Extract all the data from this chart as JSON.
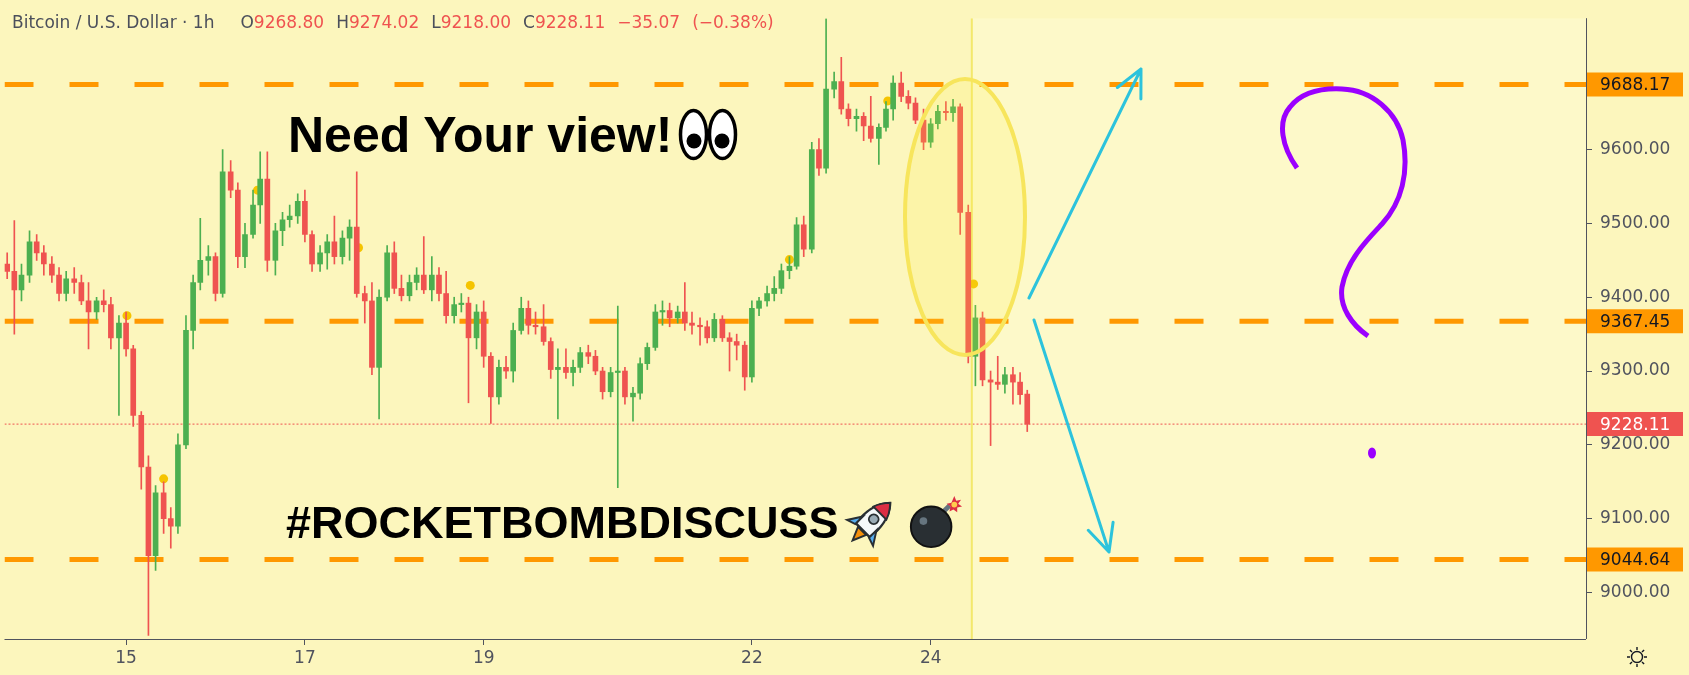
{
  "chart_data": {
    "type": "candlestick",
    "title": "Bitcoin / U.S. Dollar · 1h",
    "subtitle": "O9268.80 H9274.02 L9218.00 C9228.11 −35.07 (−0.38%)",
    "annotations": [
      "Need Your view!",
      "#ROCKETBOMBDISCUSS"
    ],
    "x": [
      13.67,
      13.75,
      13.83,
      13.92,
      14,
      14.08,
      14.17,
      14.25,
      14.33,
      14.42,
      14.5,
      14.58,
      14.67,
      14.75,
      14.83,
      14.92,
      15,
      15.08,
      15.17,
      15.25,
      15.33,
      15.42,
      15.5,
      15.58,
      15.67,
      15.75,
      15.83,
      15.92,
      16,
      16.08,
      16.17,
      16.25,
      16.33,
      16.42,
      16.5,
      16.58,
      16.67,
      16.75,
      16.83,
      16.92,
      17,
      17.08,
      17.17,
      17.25,
      17.33,
      17.42,
      17.5,
      17.58,
      17.67,
      17.75,
      17.83,
      17.92,
      18,
      18.08,
      18.17,
      18.25,
      18.33,
      18.42,
      18.5,
      18.58,
      18.67,
      18.75,
      18.83,
      18.92,
      19,
      19.08,
      19.17,
      19.25,
      19.33,
      19.42,
      19.5,
      19.58,
      19.67,
      19.75,
      19.83,
      19.92,
      20,
      20.08,
      20.17,
      20.25,
      20.33,
      20.42,
      20.5,
      20.58,
      20.67,
      20.75,
      20.83,
      20.92,
      21,
      21.08,
      21.17,
      21.25,
      21.33,
      21.42,
      21.5,
      21.58,
      21.67,
      21.75,
      21.83,
      21.92,
      22,
      22.08,
      22.17,
      22.25,
      22.33,
      22.42,
      22.5,
      22.58,
      22.67,
      22.75,
      22.83,
      22.92,
      23,
      23.08,
      23.17,
      23.25,
      23.33,
      23.42,
      23.5,
      23.58,
      23.67,
      23.75,
      23.83,
      23.92,
      24,
      24.08,
      24.17,
      24.25,
      24.33,
      24.42,
      24.5,
      24.58,
      24.67,
      24.75,
      24.83,
      24.92,
      25,
      25.08
    ],
    "ohlc": [
      [
        9445,
        9460,
        9425,
        9435
      ],
      [
        9435,
        9504,
        9350,
        9410
      ],
      [
        9410,
        9445,
        9395,
        9430
      ],
      [
        9430,
        9490,
        9420,
        9475
      ],
      [
        9475,
        9485,
        9450,
        9460
      ],
      [
        9460,
        9470,
        9430,
        9445
      ],
      [
        9445,
        9455,
        9420,
        9430
      ],
      [
        9430,
        9440,
        9395,
        9405
      ],
      [
        9405,
        9435,
        9395,
        9425
      ],
      [
        9425,
        9440,
        9405,
        9420
      ],
      [
        9420,
        9430,
        9390,
        9395
      ],
      [
        9395,
        9420,
        9330,
        9380
      ],
      [
        9380,
        9400,
        9370,
        9395
      ],
      [
        9395,
        9410,
        9380,
        9390
      ],
      [
        9390,
        9400,
        9330,
        9345
      ],
      [
        9345,
        9375,
        9240,
        9365
      ],
      [
        9365,
        9380,
        9320,
        9330
      ],
      [
        9330,
        9335,
        9225,
        9240
      ],
      [
        9240,
        9245,
        9140,
        9170
      ],
      [
        9170,
        9185,
        8942,
        9050
      ],
      [
        9050,
        9145,
        9030,
        9135
      ],
      [
        9135,
        9150,
        9080,
        9100
      ],
      [
        9100,
        9115,
        9060,
        9090
      ],
      [
        9090,
        9215,
        9080,
        9200
      ],
      [
        9200,
        9375,
        9195,
        9355
      ],
      [
        9355,
        9430,
        9330,
        9420
      ],
      [
        9420,
        9507,
        9410,
        9450
      ],
      [
        9450,
        9470,
        9430,
        9455
      ],
      [
        9455,
        9460,
        9395,
        9405
      ],
      [
        9405,
        9600,
        9400,
        9570
      ],
      [
        9570,
        9585,
        9535,
        9545
      ],
      [
        9545,
        9555,
        9440,
        9455
      ],
      [
        9455,
        9500,
        9440,
        9485
      ],
      [
        9485,
        9545,
        9480,
        9525
      ],
      [
        9525,
        9597,
        9500,
        9560
      ],
      [
        9560,
        9597,
        9435,
        9450
      ],
      [
        9450,
        9500,
        9430,
        9490
      ],
      [
        9490,
        9515,
        9470,
        9505
      ],
      [
        9505,
        9525,
        9495,
        9510
      ],
      [
        9510,
        9540,
        9500,
        9530
      ],
      [
        9530,
        9545,
        9475,
        9485
      ],
      [
        9485,
        9490,
        9435,
        9445
      ],
      [
        9445,
        9470,
        9435,
        9460
      ],
      [
        9460,
        9485,
        9438,
        9475
      ],
      [
        9475,
        9510,
        9445,
        9455
      ],
      [
        9455,
        9490,
        9445,
        9480
      ],
      [
        9480,
        9505,
        9450,
        9495
      ],
      [
        9495,
        9570,
        9400,
        9405
      ],
      [
        9405,
        9415,
        9365,
        9395
      ],
      [
        9395,
        9420,
        9295,
        9305
      ],
      [
        9305,
        9410,
        9235,
        9400
      ],
      [
        9400,
        9470,
        9395,
        9460
      ],
      [
        9460,
        9475,
        9405,
        9412
      ],
      [
        9412,
        9430,
        9395,
        9402
      ],
      [
        9402,
        9430,
        9395,
        9420
      ],
      [
        9420,
        9440,
        9410,
        9430
      ],
      [
        9430,
        9482,
        9405,
        9410
      ],
      [
        9410,
        9455,
        9395,
        9430
      ],
      [
        9430,
        9440,
        9395,
        9405
      ],
      [
        9405,
        9435,
        9365,
        9375
      ],
      [
        9375,
        9400,
        9365,
        9390
      ],
      [
        9390,
        9405,
        9380,
        9392
      ],
      [
        9392,
        9400,
        9257,
        9345
      ],
      [
        9345,
        9390,
        9330,
        9380
      ],
      [
        9380,
        9395,
        9305,
        9320
      ],
      [
        9320,
        9325,
        9229,
        9265
      ],
      [
        9265,
        9315,
        9255,
        9305
      ],
      [
        9305,
        9320,
        9290,
        9300
      ],
      [
        9300,
        9365,
        9285,
        9355
      ],
      [
        9355,
        9400,
        9350,
        9385
      ],
      [
        9385,
        9395,
        9350,
        9362
      ],
      [
        9362,
        9380,
        9350,
        9360
      ],
      [
        9360,
        9390,
        9335,
        9340
      ],
      [
        9340,
        9345,
        9290,
        9302
      ],
      [
        9302,
        9330,
        9235,
        9305
      ],
      [
        9305,
        9330,
        9290,
        9298
      ],
      [
        9298,
        9315,
        9280,
        9305
      ],
      [
        9305,
        9332,
        9298,
        9325
      ],
      [
        9325,
        9335,
        9310,
        9320
      ],
      [
        9320,
        9328,
        9295,
        9300
      ],
      [
        9300,
        9305,
        9262,
        9272
      ],
      [
        9272,
        9305,
        9265,
        9298
      ],
      [
        9298,
        9388,
        9142,
        9300
      ],
      [
        9300,
        9305,
        9255,
        9265
      ],
      [
        9265,
        9278,
        9232,
        9270
      ],
      [
        9270,
        9318,
        9262,
        9310
      ],
      [
        9310,
        9338,
        9302,
        9332
      ],
      [
        9332,
        9390,
        9328,
        9380
      ],
      [
        9380,
        9395,
        9362,
        9382
      ],
      [
        9382,
        9392,
        9360,
        9372
      ],
      [
        9372,
        9388,
        9365,
        9380
      ],
      [
        9380,
        9420,
        9355,
        9365
      ],
      [
        9365,
        9380,
        9350,
        9362
      ],
      [
        9362,
        9372,
        9335,
        9360
      ],
      [
        9360,
        9368,
        9338,
        9345
      ],
      [
        9345,
        9378,
        9340,
        9370
      ],
      [
        9370,
        9375,
        9340,
        9345
      ],
      [
        9345,
        9352,
        9300,
        9340
      ],
      [
        9340,
        9350,
        9315,
        9335
      ],
      [
        9335,
        9340,
        9274,
        9292
      ],
      [
        9292,
        9395,
        9285,
        9385
      ],
      [
        9385,
        9400,
        9375,
        9395
      ],
      [
        9395,
        9415,
        9388,
        9405
      ],
      [
        9405,
        9428,
        9395,
        9412
      ],
      [
        9412,
        9445,
        9405,
        9436
      ],
      [
        9436,
        9455,
        9425,
        9442
      ],
      [
        9442,
        9508,
        9438,
        9498
      ],
      [
        9498,
        9510,
        9455,
        9465
      ],
      [
        9465,
        9610,
        9460,
        9600
      ],
      [
        9600,
        9615,
        9565,
        9575
      ],
      [
        9575,
        9777,
        9568,
        9682
      ],
      [
        9682,
        9705,
        9670,
        9692
      ],
      [
        9692,
        9725,
        9648,
        9655
      ],
      [
        9655,
        9662,
        9632,
        9642
      ],
      [
        9642,
        9655,
        9625,
        9645
      ],
      [
        9645,
        9650,
        9612,
        9632
      ],
      [
        9632,
        9672,
        9610,
        9615
      ],
      [
        9615,
        9635,
        9580,
        9630
      ],
      [
        9630,
        9665,
        9625,
        9655
      ],
      [
        9655,
        9700,
        9640,
        9690
      ],
      [
        9690,
        9705,
        9665,
        9672
      ],
      [
        9672,
        9680,
        9655,
        9663
      ],
      [
        9663,
        9670,
        9635,
        9640
      ],
      [
        9640,
        9655,
        9600,
        9610
      ],
      [
        9610,
        9642,
        9603,
        9635
      ],
      [
        9635,
        9660,
        9628,
        9652
      ],
      [
        9652,
        9665,
        9640,
        9650
      ],
      [
        9650,
        9668,
        9638,
        9658
      ],
      [
        9658,
        9662,
        9485,
        9515
      ],
      [
        9515,
        9525,
        9311,
        9320
      ],
      [
        9320,
        9389,
        9280,
        9372
      ],
      [
        9372,
        9380,
        9280,
        9288
      ],
      [
        9288,
        9300,
        9199,
        9285
      ],
      [
        9285,
        9320,
        9275,
        9282
      ],
      [
        9282,
        9305,
        9270,
        9295
      ],
      [
        9295,
        9305,
        9255,
        9285
      ],
      [
        9285,
        9298,
        9255,
        9268
      ],
      [
        9268.8,
        9274.02,
        9218.0,
        9228.11
      ]
    ],
    "colors": [
      "#ef5350",
      "#ef5350",
      "#4caf50",
      "#4caf50",
      "#ef5350",
      "#ef5350",
      "#ef5350",
      "#ef5350",
      "#4caf50",
      "#ef5350",
      "#ef5350",
      "#ef5350",
      "#4caf50",
      "#ef5350",
      "#ef5350",
      "#4caf50",
      "#ef5350",
      "#ef5350",
      "#ef5350",
      "#ef5350",
      "#4caf50",
      "#ef5350",
      "#ef5350",
      "#4caf50",
      "#4caf50",
      "#4caf50",
      "#4caf50",
      "#4caf50",
      "#ef5350",
      "#4caf50",
      "#ef5350",
      "#ef5350",
      "#4caf50",
      "#4caf50",
      "#4caf50",
      "#ef5350",
      "#4caf50",
      "#4caf50",
      "#4caf50",
      "#4caf50",
      "#ef5350",
      "#ef5350",
      "#4caf50",
      "#4caf50",
      "#ef5350",
      "#4caf50",
      "#4caf50",
      "#ef5350",
      "#ef5350",
      "#ef5350",
      "#4caf50",
      "#4caf50",
      "#ef5350",
      "#ef5350",
      "#4caf50",
      "#4caf50",
      "#ef5350",
      "#4caf50",
      "#ef5350",
      "#ef5350",
      "#4caf50",
      "#4caf50",
      "#ef5350",
      "#4caf50",
      "#ef5350",
      "#ef5350",
      "#4caf50",
      "#ef5350",
      "#4caf50",
      "#4caf50",
      "#ef5350",
      "#ef5350",
      "#ef5350",
      "#ef5350",
      "#4caf50",
      "#ef5350",
      "#4caf50",
      "#4caf50",
      "#ef5350",
      "#ef5350",
      "#ef5350",
      "#4caf50",
      "#4caf50",
      "#ef5350",
      "#4caf50",
      "#4caf50",
      "#4caf50",
      "#4caf50",
      "#4caf50",
      "#ef5350",
      "#4caf50",
      "#ef5350",
      "#ef5350",
      "#ef5350",
      "#ef5350",
      "#4caf50",
      "#ef5350",
      "#ef5350",
      "#ef5350",
      "#ef5350",
      "#4caf50",
      "#4caf50",
      "#4caf50",
      "#4caf50",
      "#4caf50",
      "#4caf50",
      "#4caf50",
      "#ef5350",
      "#4caf50",
      "#ef5350",
      "#4caf50",
      "#4caf50",
      "#ef5350",
      "#ef5350",
      "#4caf50",
      "#ef5350",
      "#ef5350",
      "#4caf50",
      "#4caf50",
      "#4caf50",
      "#ef5350",
      "#ef5350",
      "#ef5350",
      "#ef5350",
      "#4caf50",
      "#4caf50",
      "#ef5350",
      "#4caf50",
      "#ef5350",
      "#ef5350",
      "#4caf50",
      "#ef5350",
      "#ef5350",
      "#ef5350",
      "#4caf50",
      "#ef5350",
      "#ef5350",
      "#ef5350"
    ],
    "series": [
      {
        "type": "scatter",
        "x": [
          15.01,
          15.42,
          16.47,
          17.6,
          18.85,
          22.42,
          23.52,
          24.48
        ],
        "values": [
          9375,
          9154,
          9545,
          9467,
          9416,
          9451,
          9666,
          9418
        ],
        "color": "#f5c400",
        "marker": "circle"
      }
    ],
    "xlim": [
      13.64,
      31.33
    ],
    "xticks": [
      15,
      17,
      19,
      22,
      24
    ],
    "ylim": [
      8937,
      9778
    ],
    "yticks": [
      {
        "value": 9000,
        "label": "9000.00"
      },
      {
        "value": 9100,
        "label": "9100.00"
      },
      {
        "value": 9200,
        "label": "9200.00"
      },
      {
        "value": 9300,
        "label": "9300.00"
      },
      {
        "value": 9400,
        "label": "9400.00"
      },
      {
        "value": 9500,
        "label": "9500.00"
      },
      {
        "value": 9600,
        "label": "9600.00"
      }
    ],
    "ref_lines": [
      {
        "axis": "y",
        "value": 9688.17,
        "label": "9688.17",
        "color": "#ff9800",
        "line_style": "dashed"
      },
      {
        "axis": "y",
        "value": 9367.45,
        "label": "9367.45",
        "color": "#ff9800",
        "line_style": "dashed"
      },
      {
        "axis": "y",
        "value": 9044.64,
        "label": "9044.64",
        "color": "#ff9800",
        "line_style": "dashed"
      },
      {
        "axis": "y",
        "value": 9228.11,
        "label": "9228.11",
        "color": "#ef5350",
        "line_style": "dotted"
      },
      {
        "axis": "x",
        "value": 24.46,
        "color": "#f3e86c",
        "line_style": "solid"
      }
    ],
    "bands": [
      {
        "axis": "x",
        "from": 24.46,
        "to": 31.33,
        "color": "#fdf9c9"
      }
    ],
    "grid": false,
    "legend": false
  }
}
